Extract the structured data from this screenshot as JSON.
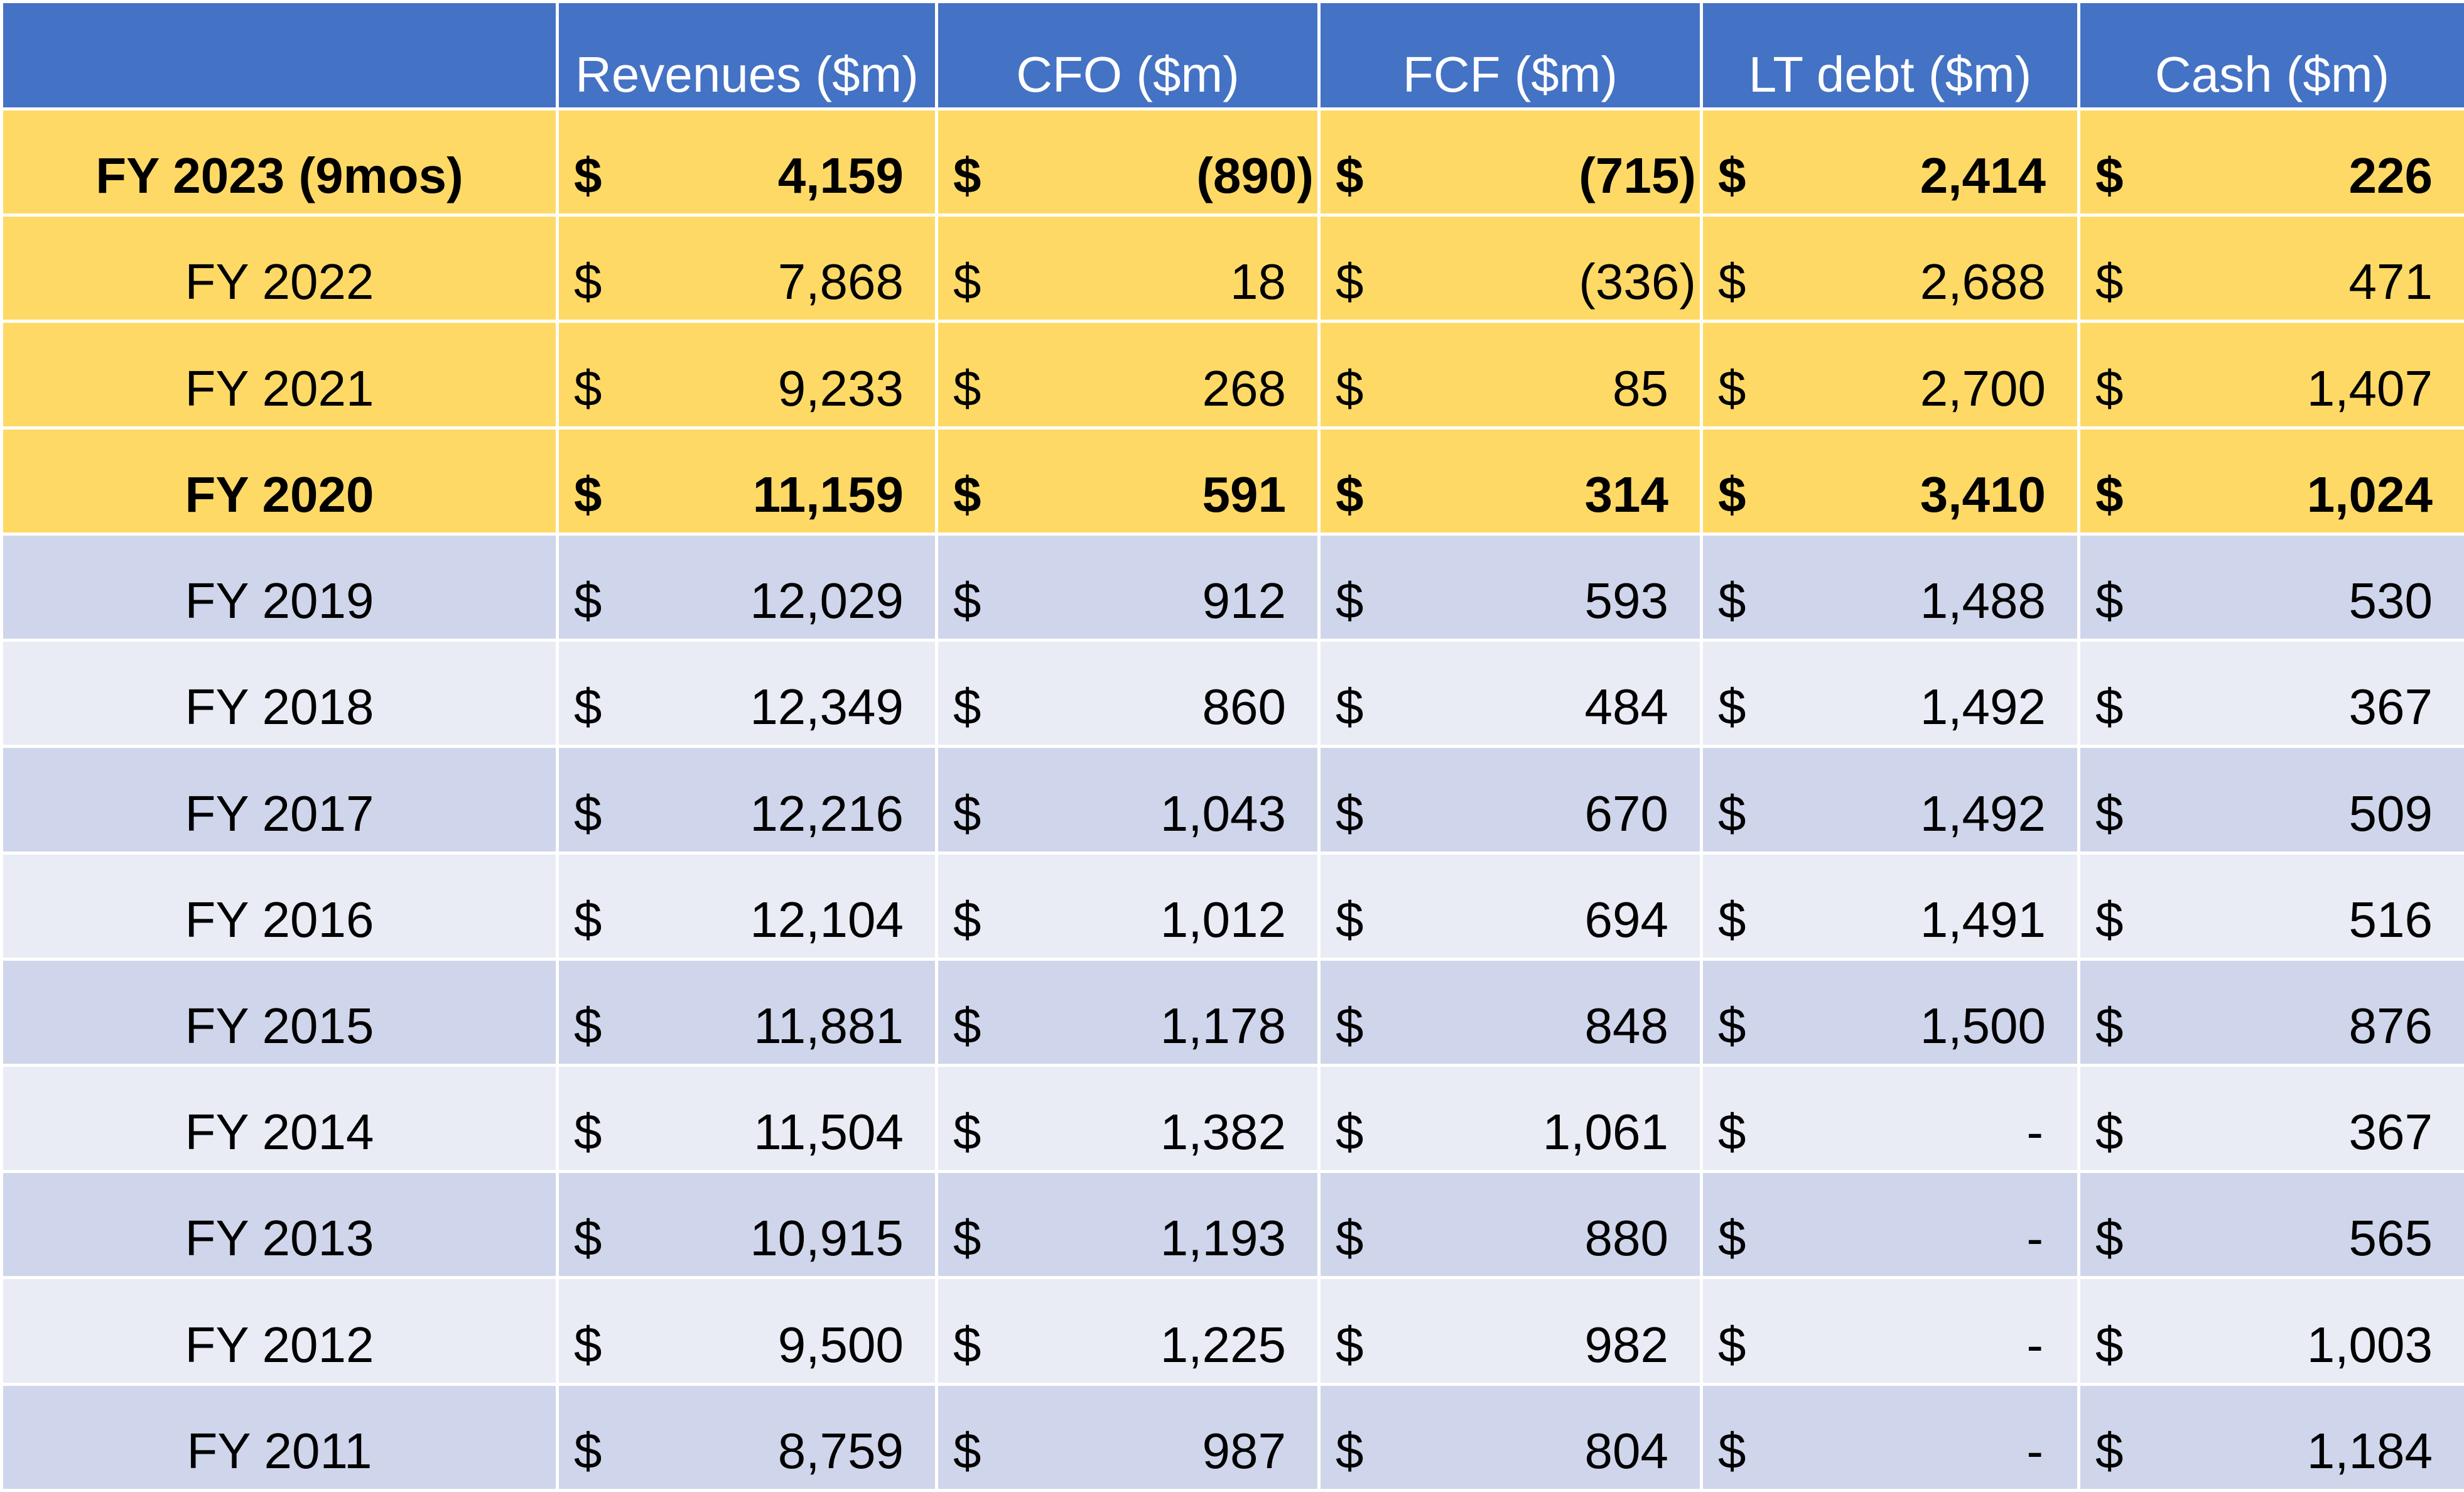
{
  "colors": {
    "header": "#4472C4",
    "highlight": "#FFD966",
    "band_dark": "#CFD5EA",
    "band_light": "#E9EBF5"
  },
  "columns": [
    "",
    "Revenues ($m)",
    "CFO ($m)",
    "FCF ($m)",
    "LT debt ($m)",
    "Cash ($m)"
  ],
  "currency_symbol": "$",
  "rows": [
    {
      "year": "FY 2023 (9mos)",
      "revenues": "4,159",
      "cfo": "(890)",
      "fcf": "(715)",
      "lt_debt": "2,414",
      "cash": "226"
    },
    {
      "year": "FY 2022",
      "revenues": "7,868",
      "cfo": "18",
      "fcf": "(336)",
      "lt_debt": "2,688",
      "cash": "471"
    },
    {
      "year": "FY 2021",
      "revenues": "9,233",
      "cfo": "268",
      "fcf": "85",
      "lt_debt": "2,700",
      "cash": "1,407"
    },
    {
      "year": "FY 2020",
      "revenues": "11,159",
      "cfo": "591",
      "fcf": "314",
      "lt_debt": "3,410",
      "cash": "1,024"
    },
    {
      "year": "FY 2019",
      "revenues": "12,029",
      "cfo": "912",
      "fcf": "593",
      "lt_debt": "1,488",
      "cash": "530"
    },
    {
      "year": "FY 2018",
      "revenues": "12,349",
      "cfo": "860",
      "fcf": "484",
      "lt_debt": "1,492",
      "cash": "367"
    },
    {
      "year": "FY 2017",
      "revenues": "12,216",
      "cfo": "1,043",
      "fcf": "670",
      "lt_debt": "1,492",
      "cash": "509"
    },
    {
      "year": "FY 2016",
      "revenues": "12,104",
      "cfo": "1,012",
      "fcf": "694",
      "lt_debt": "1,491",
      "cash": "516"
    },
    {
      "year": "FY 2015",
      "revenues": "11,881",
      "cfo": "1,178",
      "fcf": "848",
      "lt_debt": "1,500",
      "cash": "876"
    },
    {
      "year": "FY 2014",
      "revenues": "11,504",
      "cfo": "1,382",
      "fcf": "1,061",
      "lt_debt": "-",
      "cash": "367"
    },
    {
      "year": "FY 2013",
      "revenues": "10,915",
      "cfo": "1,193",
      "fcf": "880",
      "lt_debt": "-",
      "cash": "565"
    },
    {
      "year": "FY 2012",
      "revenues": "9,500",
      "cfo": "1,225",
      "fcf": "982",
      "lt_debt": "-",
      "cash": "1,003"
    },
    {
      "year": "FY 2011",
      "revenues": "8,759",
      "cfo": "987",
      "fcf": "804",
      "lt_debt": "-",
      "cash": "1,184"
    }
  ]
}
